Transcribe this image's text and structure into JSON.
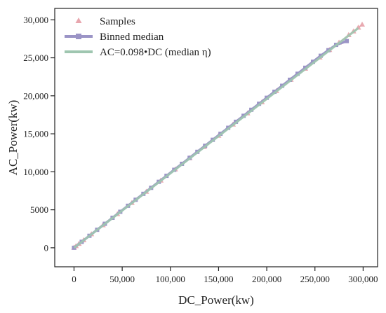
{
  "chart_data": {
    "type": "scatter",
    "xlabel": "DC_Power(kw)",
    "ylabel": "AC_Power(kw)",
    "xlim": [
      -20000,
      315000
    ],
    "ylim": [
      -2500,
      31500
    ],
    "xticks": [
      0,
      50000,
      100000,
      150000,
      200000,
      250000,
      300000
    ],
    "xtick_labels": [
      "0",
      "50,000",
      "100,000",
      "150,000",
      "200,000",
      "250,000",
      "300,000"
    ],
    "yticks": [
      0,
      5000,
      10000,
      15000,
      20000,
      25000,
      30000
    ],
    "ytick_labels": [
      "0",
      "5000",
      "10,000",
      "15,000",
      "20,000",
      "25,000",
      "30,000"
    ],
    "grid": false,
    "legend_position": "top-left",
    "series": [
      {
        "name": "Samples",
        "kind": "scatter",
        "marker": "triangle",
        "color": "#e8a6ae",
        "x": [
          0,
          2000,
          5000,
          10000,
          18000,
          30000,
          45000,
          60000,
          75000,
          90000,
          105000,
          120000,
          135000,
          150000,
          165000,
          180000,
          195000,
          210000,
          225000,
          240000,
          255000,
          265000,
          275000,
          285000,
          290000,
          295000,
          299000
        ],
        "y": [
          0,
          200,
          500,
          980,
          1770,
          2950,
          4420,
          5890,
          7360,
          8830,
          10300,
          11780,
          13250,
          14720,
          16200,
          17670,
          19140,
          20610,
          22080,
          23550,
          25020,
          26010,
          26990,
          27970,
          28460,
          28950,
          29350
        ]
      },
      {
        "name": "Binned median",
        "kind": "line",
        "marker": "square",
        "color": "#9b94c6",
        "x": [
          0,
          8000,
          16000,
          24000,
          32000,
          40000,
          48000,
          56000,
          64000,
          72000,
          80000,
          88000,
          96000,
          104000,
          112000,
          120000,
          128000,
          136000,
          144000,
          152000,
          160000,
          168000,
          176000,
          184000,
          192000,
          200000,
          208000,
          216000,
          224000,
          232000,
          240000,
          248000,
          256000,
          264000,
          272000,
          283000
        ],
        "y": [
          0,
          790,
          1580,
          2370,
          3160,
          3950,
          4740,
          5530,
          6320,
          7100,
          7890,
          8680,
          9470,
          10260,
          11050,
          11840,
          12630,
          13420,
          14210,
          15000,
          15790,
          16580,
          17370,
          18160,
          18950,
          19740,
          20530,
          21320,
          22110,
          22900,
          23690,
          24480,
          25270,
          26000,
          26700,
          27200
        ]
      },
      {
        "name": "AC=0.098•DC (median η)",
        "kind": "line",
        "marker": "none",
        "color": "#9fc6b0",
        "x": [
          0,
          295000
        ],
        "y": [
          0,
          28910
        ]
      }
    ]
  }
}
